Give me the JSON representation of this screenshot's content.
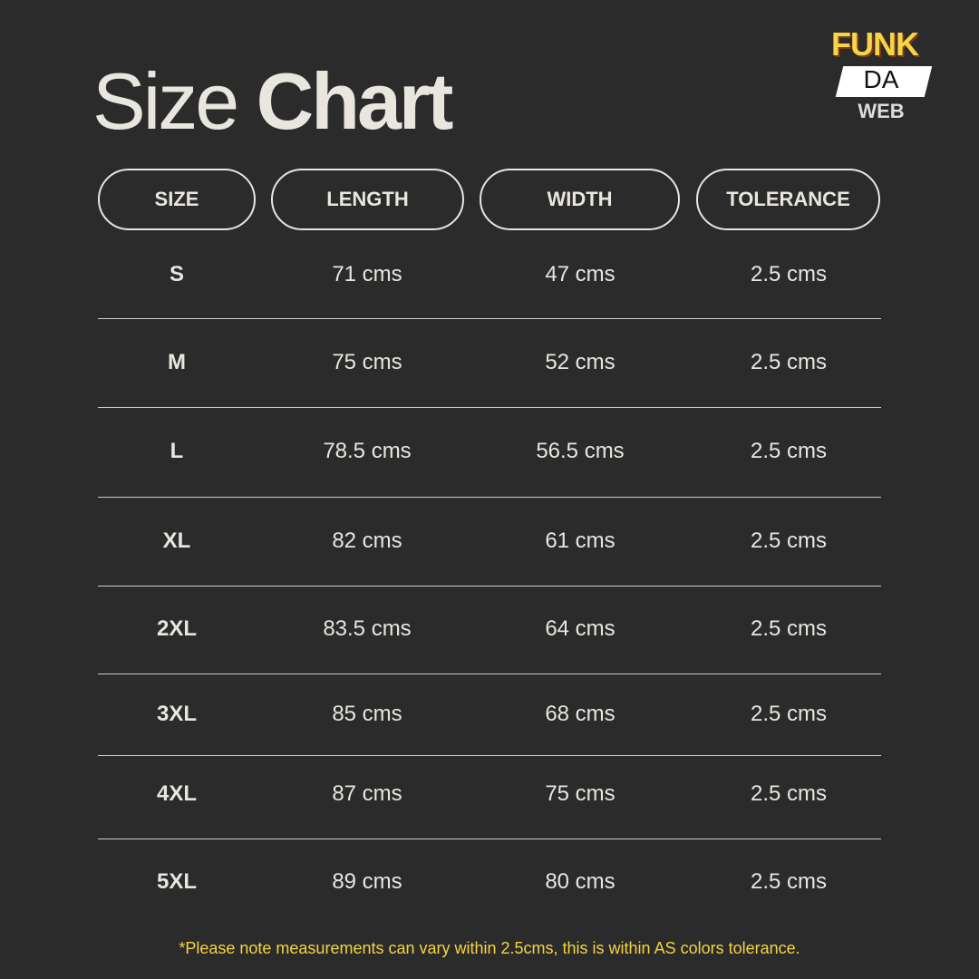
{
  "title": {
    "light": "Size",
    "bold": "Chart"
  },
  "logo": {
    "line1": "FUNK",
    "line2": "DA",
    "line3": "WEB"
  },
  "headers": [
    "SIZE",
    "LENGTH",
    "WIDTH",
    "TOLERANCE"
  ],
  "rows": [
    [
      "S",
      "71 cms",
      "47 cms",
      "2.5 cms"
    ],
    [
      "M",
      "75 cms",
      "52 cms",
      "2.5 cms"
    ],
    [
      "L",
      "78.5 cms",
      "56.5 cms",
      "2.5 cms"
    ],
    [
      "XL",
      "82 cms",
      "61 cms",
      "2.5 cms"
    ],
    [
      "2XL",
      "83.5 cms",
      "64 cms",
      "2.5 cms"
    ],
    [
      "3XL",
      "85 cms",
      "68 cms",
      "2.5 cms"
    ],
    [
      "4XL",
      "87 cms",
      "75 cms",
      "2.5 cms"
    ],
    [
      "5XL",
      "89 cms",
      "80 cms",
      "2.5 cms"
    ]
  ],
  "note": "*Please note measurements can vary within 2.5cms, this is within AS colors tolerance.",
  "colors": {
    "background": "#2b2b2b",
    "text": "#e8e6df",
    "accent": "#f5d442"
  }
}
